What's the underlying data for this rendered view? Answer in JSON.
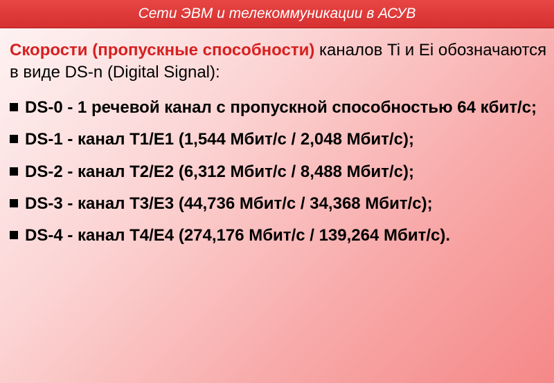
{
  "header": {
    "title": "Сети ЭВМ и телекоммуникации в АСУВ"
  },
  "intro": {
    "highlight": "Скорости (пропускные способности)",
    "rest": " каналов Ti и Ei обозначаются в виде DS-n (Digital Signal):"
  },
  "items": [
    "DS-0 - 1 речевой канал с пропускной способностью 64 кбит/с;",
    "DS-1 - канал Т1/Е1 (1,544 Мбит/с / 2,048 Мбит/с);",
    "DS-2 - канал Т2/Е2 (6,312 Мбит/с / 8,488 Мбит/с);",
    "DS-3 - канал Т3/Е3 (44,736 Мбит/с / 34,368 Мбит/с);",
    "DS-4 - канал Т4/Е4 (274,176 Мбит/с / 139,264 Мбит/с)."
  ],
  "colors": {
    "header_bg_top": "#e84545",
    "header_bg_bottom": "#d63030",
    "header_text": "#ffffff",
    "highlight_text": "#d62020",
    "body_text": "#000000",
    "bullet": "#000000",
    "bg_gradient_start": "#fef5f5",
    "bg_gradient_mid1": "#fcd5d5",
    "bg_gradient_mid2": "#f8a8a8",
    "bg_gradient_end": "#f58888"
  },
  "typography": {
    "header_fontsize": 21,
    "header_style": "italic",
    "body_fontsize": 24,
    "list_fontweight": "bold",
    "font_family": "Arial"
  }
}
